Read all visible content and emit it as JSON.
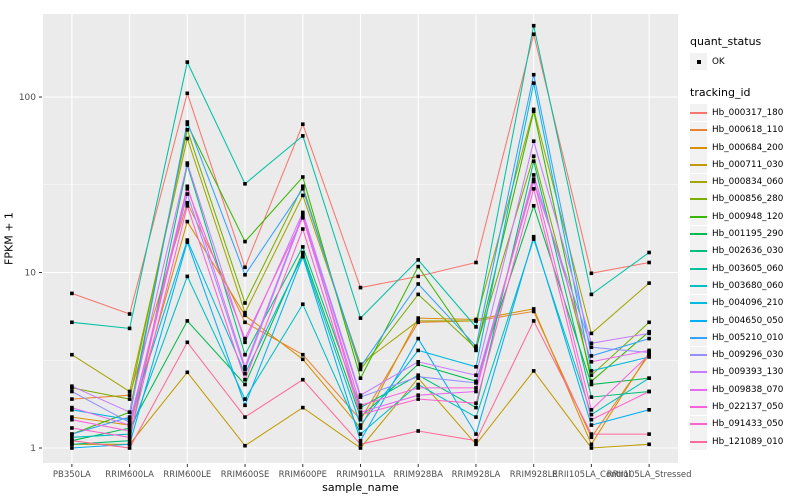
{
  "chart_data": {
    "type": "line",
    "title": "",
    "xlabel": "sample_name",
    "ylabel": "FPKM + 1",
    "y_scale": "log10",
    "y_ticks": [
      1,
      10,
      100
    ],
    "y_minor": [
      3.162,
      31.62
    ],
    "ylim": [
      0.82,
      300
    ],
    "grid": true,
    "legend_position": "right",
    "panel_bg": "#EBEBEB",
    "grid_color": "#FFFFFF",
    "point_color": "#000000",
    "axis_text_color": "#4D4D4D",
    "tick_color": "#333333",
    "categories": [
      "PB350LA",
      "RRIM600LA",
      "RRIM600LE",
      "RRIM600SE",
      "RRIM600PE",
      "RRIM901LA",
      "RRIM928BA",
      "RRIM928LA",
      "RRIM928LE",
      "RRII105LA_Control",
      "RRII105LA_Stressed"
    ],
    "legend": {
      "quant_status_title": "quant_status",
      "quant_status_items": [
        "OK"
      ],
      "tracking_id_title": "tracking_id"
    },
    "series": [
      {
        "name": "Hb_000317_180",
        "color": "#F8766D",
        "values": [
          7.6,
          5.8,
          105,
          10.7,
          70,
          8.2,
          9.5,
          11.4,
          228,
          9.9,
          11.4
        ]
      },
      {
        "name": "Hb_000618_110",
        "color": "#EA8331",
        "values": [
          1.9,
          2.0,
          25,
          5.2,
          3.4,
          1.45,
          5.2,
          5.3,
          6.0,
          1.15,
          3.4
        ]
      },
      {
        "name": "Hb_000684_200",
        "color": "#D89000",
        "values": [
          1.5,
          1.35,
          19.5,
          5.7,
          3.2,
          1.3,
          5.5,
          5.4,
          6.2,
          1.05,
          3.5
        ]
      },
      {
        "name": "Hb_000711_030",
        "color": "#C09B00",
        "values": [
          1.05,
          1.05,
          2.7,
          1.03,
          1.7,
          1.0,
          2.5,
          1.05,
          2.75,
          1.0,
          1.05
        ]
      },
      {
        "name": "Hb_000834_060",
        "color": "#A3A500",
        "values": [
          3.4,
          2.1,
          58,
          5.9,
          27.5,
          3.0,
          5.3,
          5.3,
          85,
          4.5,
          8.7
        ]
      },
      {
        "name": "Hb_000856_280",
        "color": "#7CAE00",
        "values": [
          2.2,
          1.9,
          65,
          6.7,
          31,
          2.8,
          7.5,
          3.7,
          46,
          2.6,
          5.2
        ]
      },
      {
        "name": "Hb_000948_120",
        "color": "#39B600",
        "values": [
          1.2,
          1.6,
          70,
          15,
          35,
          2.5,
          10.8,
          3.6,
          83,
          2.4,
          4.6
        ]
      },
      {
        "name": "Hb_001195_290",
        "color": "#00BB4E",
        "values": [
          1.1,
          1.3,
          5.3,
          2.3,
          13,
          1.5,
          3.0,
          2.4,
          24,
          2.3,
          2.5
        ]
      },
      {
        "name": "Hb_002636_030",
        "color": "#00BF7D",
        "values": [
          1.05,
          1.1,
          41,
          3.4,
          14,
          1.7,
          2.6,
          1.7,
          43,
          1.95,
          2.1
        ]
      },
      {
        "name": "Hb_003605_060",
        "color": "#00C1A3",
        "values": [
          5.2,
          4.8,
          158,
          32,
          60,
          5.5,
          11.8,
          4.9,
          255,
          7.5,
          13
        ]
      },
      {
        "name": "Hb_003680_060",
        "color": "#00BFC4",
        "values": [
          1.15,
          1.2,
          9.5,
          1.9,
          6.6,
          1.2,
          2.3,
          1.5,
          15.5,
          1.55,
          2.5
        ]
      },
      {
        "name": "Hb_004096_210",
        "color": "#00BAE0",
        "values": [
          1.65,
          1.45,
          15.3,
          2.65,
          12.5,
          1.35,
          3.6,
          2.9,
          120,
          2.75,
          3.3
        ]
      },
      {
        "name": "Hb_004650_050",
        "color": "#00B0F6",
        "values": [
          1.0,
          1.05,
          14.9,
          1.75,
          12.3,
          1.1,
          4.2,
          1.2,
          16,
          1.35,
          1.65
        ]
      },
      {
        "name": "Hb_005210_010",
        "color": "#35A2FF",
        "values": [
          1.2,
          1.5,
          72,
          9.7,
          30,
          2.9,
          8.6,
          3.8,
          134,
          3.35,
          4.2
        ]
      },
      {
        "name": "Hb_009296_030",
        "color": "#9590FF",
        "values": [
          2.1,
          1.4,
          28,
          2.8,
          21,
          1.95,
          2.55,
          2.35,
          33,
          3.75,
          3.5
        ]
      },
      {
        "name": "Hb_009393_130",
        "color": "#C77CFF",
        "values": [
          2.25,
          1.6,
          42,
          4.0,
          22,
          2.0,
          3.1,
          2.6,
          56,
          3.95,
          4.5
        ]
      },
      {
        "name": "Hb_009838_070",
        "color": "#E76BF3",
        "values": [
          1.7,
          1.35,
          31,
          2.9,
          21.5,
          1.6,
          2.0,
          2.1,
          36,
          3.1,
          3.6
        ]
      },
      {
        "name": "Hb_022137_050",
        "color": "#FA62DB",
        "values": [
          1.45,
          1.25,
          30,
          4.2,
          20.5,
          1.75,
          2.2,
          2.2,
          34,
          1.65,
          3.4
        ]
      },
      {
        "name": "Hb_091433_050",
        "color": "#FF61CC",
        "values": [
          1.3,
          1.15,
          24,
          2.45,
          17.7,
          1.55,
          1.9,
          1.8,
          30,
          1.45,
          2.1
        ]
      },
      {
        "name": "Hb_121089_010",
        "color": "#FF6A98",
        "values": [
          1.1,
          1.0,
          4.0,
          1.5,
          2.45,
          1.05,
          1.25,
          1.1,
          5.3,
          1.2,
          1.2
        ]
      }
    ]
  }
}
